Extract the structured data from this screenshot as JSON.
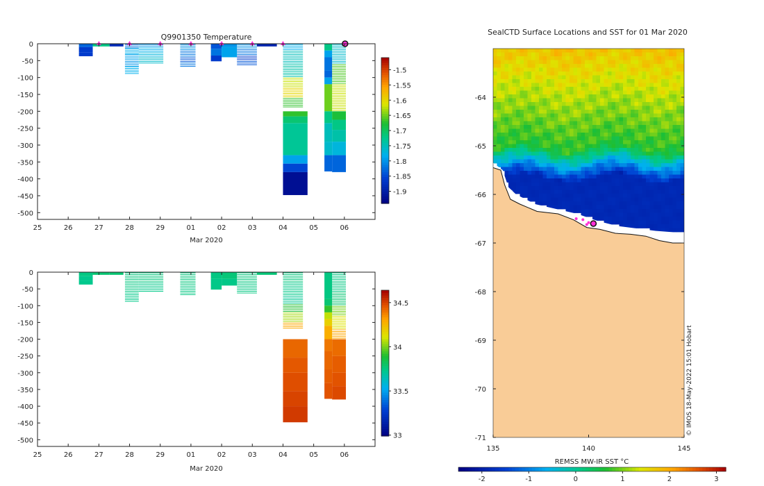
{
  "chart_data": [
    {
      "id": "temperature_section",
      "type": "heatmap",
      "title": "Q9901350  Temperature",
      "xlabel": "Mar 2020",
      "x_ticks": [
        "25",
        "26",
        "27",
        "28",
        "29",
        "01",
        "02",
        "03",
        "04",
        "05",
        "06"
      ],
      "ylim": [
        -520,
        0
      ],
      "y_ticks": [
        "0",
        "-50",
        "-100",
        "-150",
        "-200",
        "-250",
        "-300",
        "-350",
        "-400",
        "-450",
        "-500"
      ],
      "colorbar": {
        "min": -1.94,
        "max": -1.46,
        "ticks": [
          "-1.5",
          "-1.55",
          "-1.6",
          "-1.65",
          "-1.7",
          "-1.75",
          "-1.8",
          "-1.85",
          "-1.9"
        ]
      },
      "dive_markers_day": [
        27,
        28,
        29,
        30,
        31,
        32,
        33,
        35
      ],
      "latest_marker_day": 35.0,
      "profiles": [
        {
          "x0": 26.35,
          "x1": 26.8,
          "lines": false,
          "segments": [
            [
              0,
              10,
              -1.83
            ],
            [
              10,
              25,
              -1.86
            ],
            [
              25,
              37,
              -1.86
            ]
          ]
        },
        {
          "x0": 26.8,
          "x1": 27.35,
          "lines": false,
          "segments": [
            [
              0,
              8,
              -1.72
            ]
          ]
        },
        {
          "x0": 27.35,
          "x1": 27.8,
          "lines": false,
          "segments": [
            [
              0,
              8,
              -1.88
            ]
          ]
        },
        {
          "x0": 27.85,
          "x1": 28.3,
          "lines": true,
          "segments": [
            [
              0,
              12,
              -1.82
            ],
            [
              12,
              30,
              -1.78
            ],
            [
              30,
              50,
              -1.79
            ],
            [
              50,
              66,
              -1.8
            ],
            [
              66,
              88,
              -1.78
            ]
          ]
        },
        {
          "x0": 28.3,
          "x1": 29.1,
          "lines": true,
          "segments": [
            [
              0,
              10,
              -1.8
            ],
            [
              10,
              25,
              -1.78
            ],
            [
              25,
              40,
              -1.77
            ],
            [
              40,
              60,
              -1.76
            ]
          ]
        },
        {
          "x0": 29.65,
          "x1": 30.15,
          "lines": true,
          "segments": [
            [
              0,
              20,
              -1.8
            ],
            [
              20,
              40,
              -1.82
            ],
            [
              40,
              55,
              -1.84
            ],
            [
              55,
              70,
              -1.82
            ]
          ]
        },
        {
          "x0": 30.65,
          "x1": 31.0,
          "lines": false,
          "segments": [
            [
              0,
              15,
              -1.84
            ],
            [
              15,
              35,
              -1.82
            ],
            [
              35,
              52,
              -1.86
            ]
          ]
        },
        {
          "x0": 31.0,
          "x1": 31.5,
          "lines": false,
          "segments": [
            [
              0,
              10,
              -1.8
            ],
            [
              10,
              40,
              -1.79
            ]
          ]
        },
        {
          "x0": 31.5,
          "x1": 32.15,
          "lines": true,
          "segments": [
            [
              0,
              15,
              -1.8
            ],
            [
              15,
              35,
              -1.82
            ],
            [
              35,
              50,
              -1.86
            ],
            [
              50,
              65,
              -1.84
            ]
          ]
        },
        {
          "x0": 32.15,
          "x1": 32.8,
          "lines": false,
          "segments": [
            [
              0,
              8,
              -1.89
            ]
          ]
        },
        {
          "x0": 33.0,
          "x1": 33.65,
          "lines": true,
          "segments": [
            [
              0,
              20,
              -1.78
            ],
            [
              20,
              60,
              -1.75
            ],
            [
              60,
              100,
              -1.74
            ],
            [
              100,
              130,
              -1.62
            ],
            [
              130,
              160,
              -1.6
            ],
            [
              160,
              190,
              -1.67
            ]
          ]
        },
        {
          "x0": 33.0,
          "x1": 33.8,
          "lines": false,
          "segments": [
            [
              200,
              215,
              -1.67
            ],
            [
              215,
              235,
              -1.71
            ],
            [
              235,
              330,
              -1.73
            ],
            [
              330,
              355,
              -1.79
            ],
            [
              355,
              380,
              -1.85
            ],
            [
              380,
              448,
              -1.92
            ]
          ]
        },
        {
          "x0": 34.35,
          "x1": 34.6,
          "lines": false,
          "segments": [
            [
              0,
              20,
              -1.72
            ],
            [
              20,
              40,
              -1.79
            ],
            [
              40,
              80,
              -1.82
            ],
            [
              80,
              100,
              -1.83
            ],
            [
              100,
              120,
              -1.79
            ],
            [
              120,
              200,
              -1.65
            ],
            [
              200,
              235,
              -1.72
            ],
            [
              235,
              290,
              -1.75
            ],
            [
              290,
              330,
              -1.76
            ],
            [
              330,
              378,
              -1.83
            ]
          ]
        },
        {
          "x0": 34.6,
          "x1": 35.05,
          "lines": true,
          "segments": [
            [
              0,
              60,
              -1.76
            ],
            [
              60,
              120,
              -1.66
            ],
            [
              120,
              200,
              -1.62
            ]
          ]
        },
        {
          "x0": 34.6,
          "x1": 35.05,
          "lines": false,
          "segments": [
            [
              200,
              225,
              -1.68
            ],
            [
              225,
              255,
              -1.72
            ],
            [
              255,
              290,
              -1.74
            ],
            [
              290,
              330,
              -1.77
            ],
            [
              330,
              380,
              -1.83
            ]
          ]
        }
      ]
    },
    {
      "id": "salinity_section",
      "type": "heatmap",
      "title": "",
      "xlabel": "Mar 2020",
      "x_ticks": [
        "25",
        "26",
        "27",
        "28",
        "29",
        "01",
        "02",
        "03",
        "04",
        "05",
        "06"
      ],
      "ylim": [
        -520,
        0
      ],
      "y_ticks": [
        "0",
        "-50",
        "-100",
        "-150",
        "-200",
        "-250",
        "-300",
        "-350",
        "-400",
        "-450",
        "-500"
      ],
      "colorbar": {
        "min": 32.99,
        "max": 34.64,
        "ticks": [
          "34.5",
          "34",
          "33.5",
          "33"
        ]
      },
      "profiles": [
        {
          "x0": 26.35,
          "x1": 26.8,
          "lines": false,
          "segments": [
            [
              0,
              12,
              33.75
            ],
            [
              12,
              25,
              33.73
            ],
            [
              25,
              37,
              33.73
            ]
          ]
        },
        {
          "x0": 26.8,
          "x1": 27.35,
          "lines": false,
          "segments": [
            [
              0,
              8,
              33.78
            ]
          ]
        },
        {
          "x0": 27.35,
          "x1": 27.8,
          "lines": false,
          "segments": [
            [
              0,
              8,
              33.78
            ]
          ]
        },
        {
          "x0": 27.85,
          "x1": 28.3,
          "lines": true,
          "segments": [
            [
              0,
              30,
              33.76
            ],
            [
              30,
              60,
              33.75
            ],
            [
              60,
              88,
              33.74
            ]
          ]
        },
        {
          "x0": 28.3,
          "x1": 29.1,
          "lines": true,
          "segments": [
            [
              0,
              30,
              33.76
            ],
            [
              30,
              60,
              33.74
            ]
          ]
        },
        {
          "x0": 29.65,
          "x1": 30.15,
          "lines": true,
          "segments": [
            [
              0,
              40,
              33.76
            ],
            [
              40,
              70,
              33.75
            ]
          ]
        },
        {
          "x0": 30.65,
          "x1": 31.0,
          "lines": false,
          "segments": [
            [
              0,
              20,
              33.75
            ],
            [
              20,
              52,
              33.74
            ]
          ]
        },
        {
          "x0": 31.0,
          "x1": 31.5,
          "lines": false,
          "segments": [
            [
              0,
              20,
              33.77
            ],
            [
              20,
              40,
              33.74
            ]
          ]
        },
        {
          "x0": 31.5,
          "x1": 32.15,
          "lines": true,
          "segments": [
            [
              0,
              30,
              33.76
            ],
            [
              30,
              65,
              33.75
            ]
          ]
        },
        {
          "x0": 32.15,
          "x1": 32.8,
          "lines": false,
          "segments": [
            [
              0,
              8,
              33.77
            ]
          ]
        },
        {
          "x0": 33.0,
          "x1": 33.65,
          "lines": true,
          "segments": [
            [
              0,
              30,
              33.76
            ],
            [
              30,
              70,
              33.74
            ],
            [
              70,
              95,
              33.72
            ],
            [
              95,
              120,
              33.9
            ],
            [
              120,
              150,
              34.05
            ],
            [
              150,
              170,
              34.3
            ]
          ]
        },
        {
          "x0": 33.0,
          "x1": 33.8,
          "lines": false,
          "segments": [
            [
              200,
              255,
              34.43
            ],
            [
              255,
              300,
              34.46
            ],
            [
              300,
              355,
              34.48
            ],
            [
              355,
              400,
              34.5
            ],
            [
              400,
              448,
              34.52
            ]
          ]
        },
        {
          "x0": 34.35,
          "x1": 34.6,
          "lines": false,
          "segments": [
            [
              0,
              80,
              33.75
            ],
            [
              80,
              100,
              33.78
            ],
            [
              100,
              120,
              33.92
            ],
            [
              120,
              140,
              34.08
            ],
            [
              140,
              160,
              34.18
            ],
            [
              160,
              200,
              34.28
            ],
            [
              200,
              235,
              34.4
            ],
            [
              235,
              290,
              34.43
            ],
            [
              290,
              330,
              34.45
            ],
            [
              330,
              378,
              34.47
            ]
          ]
        },
        {
          "x0": 34.6,
          "x1": 35.05,
          "lines": true,
          "segments": [
            [
              0,
              60,
              33.75
            ],
            [
              60,
              100,
              33.78
            ],
            [
              100,
              130,
              34.0
            ],
            [
              130,
              170,
              34.12
            ],
            [
              170,
              200,
              34.3
            ]
          ]
        },
        {
          "x0": 34.6,
          "x1": 35.05,
          "lines": false,
          "segments": [
            [
              200,
              250,
              34.42
            ],
            [
              250,
              300,
              34.45
            ],
            [
              300,
              340,
              34.47
            ],
            [
              340,
              380,
              34.49
            ]
          ]
        }
      ]
    },
    {
      "id": "sst_map",
      "type": "heatmap",
      "title": "SealCTD Surface Locations and SST for 01 Mar 2020",
      "xlim": [
        135,
        145
      ],
      "ylim": [
        -71,
        -63
      ],
      "x_ticks": [
        "135",
        "140",
        "145"
      ],
      "y_ticks": [
        "-64",
        "-65",
        "-66",
        "-67",
        "-68",
        "-69",
        "-70",
        "-71"
      ],
      "colorbar": {
        "label": "REMSS MW-IR SST °C",
        "min": -2.5,
        "max": 3.2,
        "ticks": [
          "-2",
          "-1",
          "0",
          "1",
          "2",
          "3"
        ]
      },
      "land_color": "#f9cc97",
      "coast": [
        [
          135,
          -65.45
        ],
        [
          135.4,
          -65.5
        ],
        [
          135.6,
          -65.8
        ],
        [
          135.9,
          -66.1
        ],
        [
          136.4,
          -66.2
        ],
        [
          137.3,
          -66.35
        ],
        [
          138.4,
          -66.4
        ],
        [
          139.2,
          -66.52
        ],
        [
          139.9,
          -66.68
        ],
        [
          140.6,
          -66.72
        ],
        [
          141.4,
          -66.8
        ],
        [
          142.2,
          -66.82
        ],
        [
          143,
          -66.86
        ],
        [
          143.7,
          -66.95
        ],
        [
          144.4,
          -67.0
        ],
        [
          145,
          -67.0
        ]
      ],
      "ice_edge": [
        [
          135,
          -65.35
        ],
        [
          135.5,
          -65.5
        ],
        [
          135.8,
          -65.85
        ],
        [
          136.2,
          -66.0
        ],
        [
          137.2,
          -66.2
        ],
        [
          138.3,
          -66.3
        ],
        [
          139.4,
          -66.4
        ],
        [
          140.5,
          -66.55
        ],
        [
          141.5,
          -66.65
        ],
        [
          142.5,
          -66.7
        ],
        [
          143.5,
          -66.75
        ],
        [
          144.5,
          -66.78
        ],
        [
          145,
          -66.78
        ]
      ],
      "dive_locations": [
        [
          139.35,
          -66.5
        ],
        [
          139.7,
          -66.52
        ],
        [
          139.9,
          -66.62
        ],
        [
          140.0,
          -66.58
        ]
      ],
      "latest_location": [
        140.25,
        -66.6
      ],
      "annotation": "© IMOS 18-May-2022 15:01 Hobart"
    }
  ]
}
